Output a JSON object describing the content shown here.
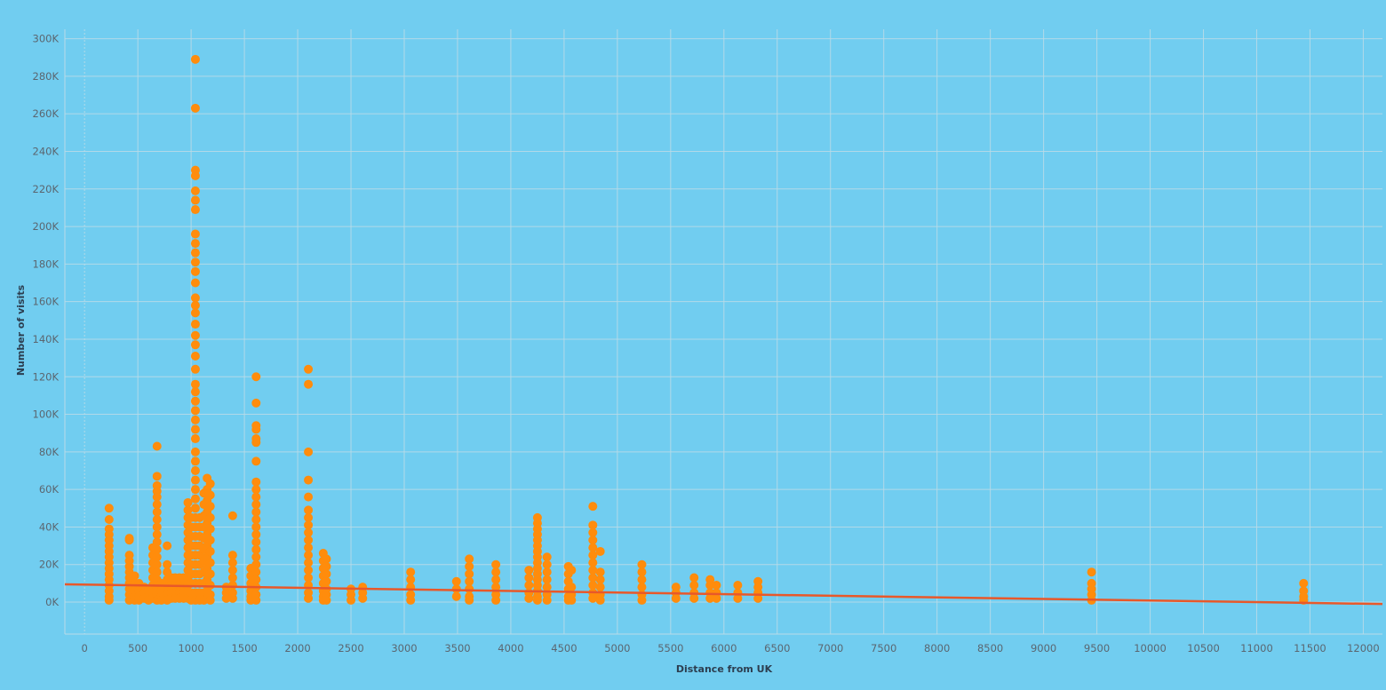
{
  "colors": {
    "background": "#71cdf0",
    "point": "#ff8c0c",
    "trend": "#e8582a",
    "grid": "#b9dbe8",
    "axis_text": "#5b6670",
    "axis_title": "#2c3e50"
  },
  "chart_data": {
    "type": "scatter",
    "title": "",
    "xlabel": "Distance from UK",
    "ylabel": "Number of visits",
    "xlim": [
      -185,
      12180
    ],
    "ylim": [
      -17000,
      305000
    ],
    "x_ticks": [
      0,
      500,
      1000,
      1500,
      2000,
      2500,
      3000,
      3500,
      4000,
      4500,
      5000,
      5500,
      6000,
      6500,
      7000,
      7500,
      8000,
      8500,
      9000,
      9500,
      10000,
      10500,
      11000,
      11500,
      12000
    ],
    "y_ticks": [
      0,
      20000,
      40000,
      60000,
      80000,
      100000,
      120000,
      140000,
      160000,
      180000,
      200000,
      220000,
      240000,
      260000,
      280000,
      300000
    ],
    "y_tick_labels": [
      "0K",
      "20K",
      "40K",
      "60K",
      "80K",
      "100K",
      "120K",
      "140K",
      "160K",
      "180K",
      "200K",
      "220K",
      "240K",
      "260K",
      "280K",
      "300K"
    ],
    "grid": true,
    "series": [
      {
        "points": [
          {
            "x": 230,
            "ys": [
              50000,
              44000,
              39000,
              36000,
              33000,
              30000,
              27000,
              24000,
              21000,
              18000,
              15000,
              12000,
              9000,
              6000,
              3000,
              1000
            ]
          },
          {
            "x": 420,
            "ys": [
              34000,
              33000,
              25000,
              22000,
              19000,
              16000,
              13000,
              10000,
              7000,
              4000,
              1000
            ]
          },
          {
            "x": 470,
            "ys": [
              14000,
              10000,
              6000,
              3000,
              1000
            ]
          },
          {
            "x": 510,
            "ys": [
              10000,
              6000,
              3000,
              1000
            ]
          },
          {
            "x": 560,
            "ys": [
              8000,
              5000,
              2000
            ]
          },
          {
            "x": 600,
            "ys": [
              6000,
              3000,
              1000
            ]
          },
          {
            "x": 640,
            "ys": [
              29000,
              25000,
              21000,
              17000,
              13000,
              9000,
              5000,
              2000
            ]
          },
          {
            "x": 680,
            "ys": [
              83000,
              67000,
              62000,
              59000,
              56000,
              52000,
              48000,
              44000,
              40000,
              36000,
              32000,
              28000,
              24000,
              20000,
              16000,
              12000,
              8000,
              4000,
              1000
            ]
          },
          {
            "x": 720,
            "ys": [
              10000,
              6000,
              3000,
              1000
            ]
          },
          {
            "x": 775,
            "ys": [
              30000,
              20000,
              16000,
              12000,
              8000,
              4000,
              1000
            ]
          },
          {
            "x": 815,
            "ys": [
              13000,
              9000,
              5000,
              2000
            ]
          },
          {
            "x": 850,
            "ys": [
              13000,
              9000,
              5000,
              2000
            ]
          },
          {
            "x": 890,
            "ys": [
              13000,
              9000,
              5000,
              2000
            ]
          },
          {
            "x": 930,
            "ys": [
              13000,
              9000,
              5000,
              2000
            ]
          },
          {
            "x": 970,
            "ys": [
              53000,
              49000,
              45000,
              41000,
              37000,
              33000,
              29000,
              25000,
              21000,
              17000,
              13000,
              9000,
              5000,
              2000
            ]
          },
          {
            "x": 1000,
            "ys": [
              45000,
              40000,
              35000,
              30000,
              25000,
              20000,
              15000,
              10000,
              5000,
              1000
            ]
          },
          {
            "x": 1040,
            "ys": [
              289000,
              263000,
              230000,
              227000,
              219000,
              214000,
              209000,
              196000,
              191000,
              186000,
              181000,
              176000,
              170000,
              162000,
              158000,
              154000,
              148000,
              142000,
              137000,
              131000,
              124000,
              116000,
              112000,
              107000,
              102000,
              97000,
              92000,
              87000,
              80000,
              75000,
              70000,
              65000,
              60000,
              55000,
              50000,
              45000,
              40000,
              35000,
              30000,
              25000,
              20000,
              15000,
              10000,
              5000,
              1000
            ]
          },
          {
            "x": 1080,
            "ys": [
              45000,
              40000,
              35000,
              30000,
              25000,
              20000,
              15000,
              10000,
              5000,
              1000
            ]
          },
          {
            "x": 1120,
            "ys": [
              58000,
              52000,
              46000,
              40000,
              34000,
              28000,
              22000,
              16000,
              10000,
              5000,
              1000
            ]
          },
          {
            "x": 1150,
            "ys": [
              66000,
              60000,
              54000,
              48000,
              42000,
              36000,
              30000,
              24000,
              18000,
              12000,
              6000,
              2000
            ]
          },
          {
            "x": 1180,
            "ys": [
              63000,
              57000,
              51000,
              45000,
              39000,
              33000,
              27000,
              21000,
              15000,
              9000,
              4000,
              1000
            ]
          },
          {
            "x": 1330,
            "ys": [
              8000,
              5000,
              2000
            ]
          },
          {
            "x": 1390,
            "ys": [
              46000,
              25000,
              21000,
              17000,
              13000,
              9000,
              5000,
              2000
            ]
          },
          {
            "x": 1560,
            "ys": [
              18000,
              14000,
              10000,
              6000,
              3000,
              1000
            ]
          },
          {
            "x": 1610,
            "ys": [
              120000,
              106000,
              94000,
              92000,
              87000,
              85000,
              75000,
              64000,
              60000,
              56000,
              52000,
              48000,
              44000,
              40000,
              36000,
              32000,
              28000,
              24000,
              20000,
              16000,
              12000,
              8000,
              4000,
              1000
            ]
          },
          {
            "x": 2100,
            "ys": [
              124000,
              116000,
              80000,
              65000,
              56000,
              49000,
              45000,
              41000,
              37000,
              33000,
              29000,
              25000,
              21000,
              17000,
              13000,
              9000,
              5000,
              2000
            ]
          },
          {
            "x": 2240,
            "ys": [
              26000,
              22000,
              18000,
              14000,
              10000,
              6000,
              3000,
              1000
            ]
          },
          {
            "x": 2270,
            "ys": [
              23000,
              19000,
              15000,
              11000,
              7000,
              4000,
              1000
            ]
          },
          {
            "x": 2500,
            "ys": [
              7000,
              4000,
              1000
            ]
          },
          {
            "x": 2610,
            "ys": [
              8000,
              5000,
              2000
            ]
          },
          {
            "x": 3060,
            "ys": [
              16000,
              12000,
              8000,
              4000,
              1000
            ]
          },
          {
            "x": 3490,
            "ys": [
              11000,
              7000,
              3000
            ]
          },
          {
            "x": 3610,
            "ys": [
              23000,
              19000,
              15000,
              11000,
              7000,
              3000,
              1000
            ]
          },
          {
            "x": 3860,
            "ys": [
              20000,
              16000,
              12000,
              8000,
              4000,
              1000
            ]
          },
          {
            "x": 4170,
            "ys": [
              17000,
              13000,
              9000,
              5000,
              2000
            ]
          },
          {
            "x": 4250,
            "ys": [
              45000,
              42000,
              39000,
              36000,
              33000,
              30000,
              27000,
              24000,
              21000,
              18000,
              15000,
              12000,
              9000,
              6000,
              3000,
              1000
            ]
          },
          {
            "x": 4340,
            "ys": [
              24000,
              20000,
              16000,
              12000,
              8000,
              4000,
              1000
            ]
          },
          {
            "x": 4540,
            "ys": [
              19000,
              15000,
              11000,
              7000,
              3000,
              1000
            ]
          },
          {
            "x": 4570,
            "ys": [
              17000,
              8000,
              4000,
              1000
            ]
          },
          {
            "x": 4770,
            "ys": [
              51000,
              41000,
              37000,
              33000,
              29000,
              25000,
              21000,
              17000,
              13000,
              9000,
              5000,
              2000
            ]
          },
          {
            "x": 4840,
            "ys": [
              27000,
              16000,
              12000,
              8000,
              4000,
              1000
            ]
          },
          {
            "x": 5230,
            "ys": [
              20000,
              16000,
              12000,
              8000,
              4000,
              1000
            ]
          },
          {
            "x": 5550,
            "ys": [
              8000,
              5000,
              2000
            ]
          },
          {
            "x": 5720,
            "ys": [
              13000,
              9000,
              5000,
              2000
            ]
          },
          {
            "x": 5870,
            "ys": [
              12000,
              9000,
              5000,
              2000
            ]
          },
          {
            "x": 5930,
            "ys": [
              9000,
              5000,
              2000
            ]
          },
          {
            "x": 6130,
            "ys": [
              9000,
              5000,
              2000
            ]
          },
          {
            "x": 6320,
            "ys": [
              11000,
              8000,
              5000,
              2000
            ]
          },
          {
            "x": 9450,
            "ys": [
              16000,
              10000,
              7000,
              4000,
              1000
            ]
          },
          {
            "x": 11440,
            "ys": [
              10000,
              6000,
              3000,
              1000
            ]
          }
        ]
      }
    ],
    "trendline": {
      "x": [
        -185,
        12180
      ],
      "y": [
        9500,
        -1000
      ]
    }
  }
}
